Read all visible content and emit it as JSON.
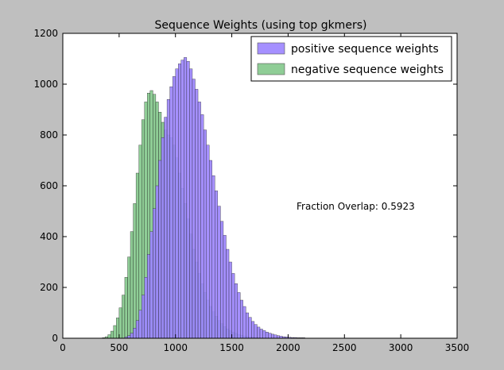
{
  "chart_data": {
    "type": "histogram",
    "title": "Sequence Weights (using top gkmers)",
    "xlabel": "",
    "ylabel": "",
    "xlim": [
      0,
      3500
    ],
    "ylim": [
      0,
      1200
    ],
    "xticks": [
      0,
      500,
      1000,
      1500,
      2000,
      2500,
      3000,
      3500
    ],
    "yticks": [
      0,
      200,
      400,
      600,
      800,
      1000,
      1200
    ],
    "grid": false,
    "legend_position": "top-right",
    "annotation": "Fraction Overlap: 0.5923",
    "series": [
      {
        "name": "positive sequence weights",
        "color": "#9b84ff",
        "alpha": 0.9,
        "bin_width": 25,
        "bins_start": [
          550,
          575,
          600,
          625,
          650,
          675,
          700,
          725,
          750,
          775,
          800,
          825,
          850,
          875,
          900,
          925,
          950,
          975,
          1000,
          1025,
          1050,
          1075,
          1100,
          1125,
          1150,
          1175,
          1200,
          1225,
          1250,
          1275,
          1300,
          1325,
          1350,
          1375,
          1400,
          1425,
          1450,
          1475,
          1500,
          1525,
          1550,
          1575,
          1600,
          1625,
          1650,
          1675,
          1700,
          1725,
          1750,
          1775,
          1800,
          1825,
          1850,
          1875,
          1900,
          1925,
          1950,
          1975,
          2000,
          2025,
          2050,
          2075,
          2100,
          2125,
          2150,
          2175,
          2200,
          2225,
          2250,
          2300,
          2350,
          2400,
          2500,
          2600,
          2700,
          2800,
          3000,
          3200
        ],
        "counts": [
          5,
          10,
          20,
          40,
          70,
          110,
          170,
          240,
          330,
          420,
          510,
          600,
          700,
          790,
          870,
          940,
          990,
          1030,
          1060,
          1080,
          1095,
          1105,
          1090,
          1060,
          1020,
          980,
          930,
          880,
          820,
          760,
          700,
          640,
          580,
          520,
          460,
          405,
          350,
          300,
          255,
          215,
          180,
          150,
          125,
          100,
          82,
          66,
          54,
          44,
          36,
          30,
          24,
          20,
          16,
          13,
          10,
          8,
          6,
          5,
          4,
          3,
          3,
          2,
          2,
          2,
          1,
          1,
          1,
          1,
          1,
          1,
          1,
          1,
          1,
          1,
          1,
          1,
          1,
          1
        ]
      },
      {
        "name": "negative sequence weights",
        "color": "#5fb86a",
        "alpha": 0.7,
        "bin_width": 25,
        "bins_start": [
          350,
          375,
          400,
          425,
          450,
          475,
          500,
          525,
          550,
          575,
          600,
          625,
          650,
          675,
          700,
          725,
          750,
          775,
          800,
          825,
          850,
          875,
          900,
          925,
          950,
          975,
          1000,
          1025,
          1050,
          1075,
          1100,
          1125,
          1150,
          1175,
          1200,
          1225,
          1250,
          1275,
          1300,
          1325,
          1350,
          1375,
          1400,
          1425,
          1450,
          1475,
          1500,
          1525,
          1550,
          1575,
          1600,
          1625,
          1650,
          1675,
          1700,
          1725,
          1750
        ],
        "counts": [
          2,
          6,
          14,
          28,
          50,
          80,
          120,
          170,
          240,
          320,
          420,
          530,
          650,
          760,
          860,
          930,
          965,
          975,
          960,
          930,
          890,
          850,
          820,
          800,
          790,
          760,
          710,
          650,
          590,
          530,
          470,
          410,
          350,
          300,
          255,
          215,
          180,
          150,
          125,
          104,
          86,
          70,
          57,
          46,
          37,
          30,
          24,
          19,
          15,
          12,
          9,
          7,
          5,
          4,
          3,
          2,
          1
        ]
      }
    ]
  }
}
